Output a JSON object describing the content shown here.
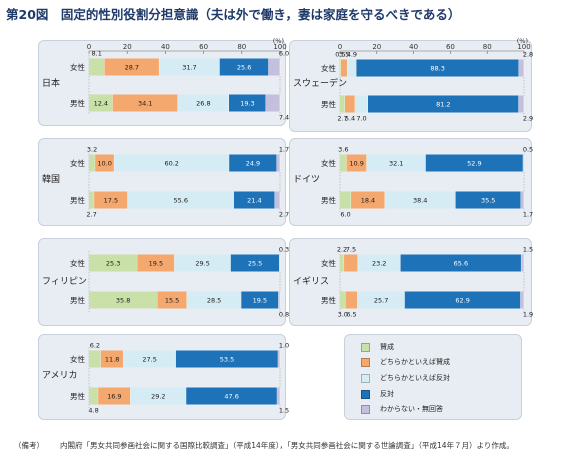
{
  "title": "第20図　固定的性別役割分担意識（夫は外で働き，妻は家庭を守るべきである）",
  "colors": {
    "sansei": "#c9e0a8",
    "dochirakatoieba_sansei": "#f4a86e",
    "dochirakatoieba_hantai": "#d6ecf5",
    "hantai": "#1e72b8",
    "wakaranai": "#c3bfdc"
  },
  "chart_data": {
    "type": "bar",
    "stacked": "horizontal-100-percent",
    "unit": "(%)",
    "axis_ticks": [
      "0",
      "20",
      "40",
      "60",
      "80",
      "100"
    ],
    "categories_order": [
      "賛成",
      "どちらかといえば賛成",
      "どちらかといえば反対",
      "反対",
      "わからない・無回答"
    ],
    "panels": [
      {
        "country": "日本",
        "show_axis": true,
        "unit": "(%)",
        "rows": [
          {
            "label": "女性",
            "values": [
              8.1,
              28.7,
              31.7,
              25.6,
              6.0
            ]
          },
          {
            "label": "男性",
            "values": [
              12.4,
              34.1,
              26.8,
              19.3,
              7.4
            ]
          }
        ]
      },
      {
        "country": "スウェーデン",
        "show_axis": true,
        "unit": "(%)",
        "rows": [
          {
            "label": "女性",
            "values": [
              0.5,
              3.5,
              4.9,
              88.3,
              2.8
            ]
          },
          {
            "label": "男性",
            "values": [
              2.7,
              5.4,
              7.0,
              81.2,
              2.9
            ]
          }
        ]
      },
      {
        "country": "韓国",
        "show_axis": false,
        "rows": [
          {
            "label": "女性",
            "values": [
              3.2,
              10.0,
              60.2,
              24.9,
              1.7
            ]
          },
          {
            "label": "男性",
            "values": [
              2.7,
              17.5,
              55.6,
              21.4,
              2.7
            ]
          }
        ]
      },
      {
        "country": "ドイツ",
        "show_axis": false,
        "rows": [
          {
            "label": "女性",
            "values": [
              3.6,
              10.9,
              32.1,
              52.9,
              0.5
            ]
          },
          {
            "label": "男性",
            "values": [
              6.0,
              18.4,
              38.4,
              35.5,
              1.7
            ]
          }
        ]
      },
      {
        "country": "フィリピン",
        "show_axis": false,
        "rows": [
          {
            "label": "女性",
            "values": [
              25.3,
              19.5,
              29.5,
              25.5,
              0.3
            ]
          },
          {
            "label": "男性",
            "values": [
              35.8,
              15.5,
              28.5,
              19.5,
              0.8
            ]
          }
        ]
      },
      {
        "country": "イギリス",
        "show_axis": false,
        "rows": [
          {
            "label": "女性",
            "values": [
              2.2,
              7.5,
              23.2,
              65.6,
              1.5
            ]
          },
          {
            "label": "男性",
            "values": [
              3.0,
              6.5,
              25.7,
              62.9,
              1.9
            ]
          }
        ]
      },
      {
        "country": "アメリカ",
        "show_axis": false,
        "rows": [
          {
            "label": "女性",
            "values": [
              6.2,
              11.8,
              27.5,
              53.5,
              1.0
            ]
          },
          {
            "label": "男性",
            "values": [
              4.8,
              16.9,
              29.2,
              47.6,
              1.5
            ]
          }
        ]
      }
    ]
  },
  "legend": {
    "items": [
      {
        "label": "賛成",
        "color": "#c9e0a8"
      },
      {
        "label": "どちらかといえば賛成",
        "color": "#f4a86e"
      },
      {
        "label": "どちらかといえば反対",
        "color": "#d6ecf5"
      },
      {
        "label": "反対",
        "color": "#1e72b8"
      },
      {
        "label": "わからない・無回答",
        "color": "#c3bfdc"
      }
    ]
  },
  "footnote": {
    "tag": "（備考）",
    "text": "内閣府「男女共同参画社会に関する国際比較調査」（平成14年度），「男女共同参画社会に関する世論調査」（平成14年７月）より作成。"
  }
}
